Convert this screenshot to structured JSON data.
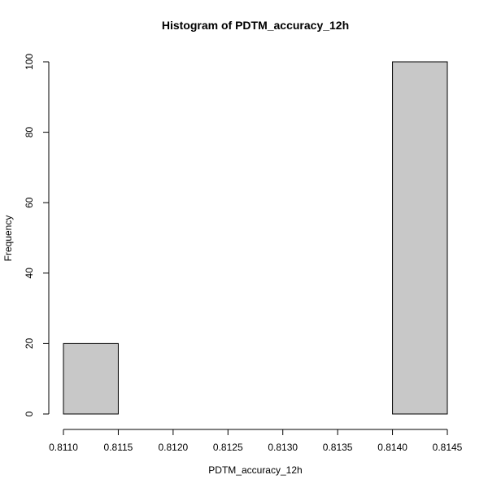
{
  "chart_data": {
    "type": "bar",
    "title": "Histogram of PDTM_accuracy_12h",
    "xlabel": "PDTM_accuracy_12h",
    "ylabel": "Frequency",
    "xlim": [
      0.811,
      0.8145
    ],
    "ylim": [
      0,
      100
    ],
    "xticks": [
      "0.8110",
      "0.8115",
      "0.8120",
      "0.8125",
      "0.8130",
      "0.8135",
      "0.8140",
      "0.8145"
    ],
    "yticks": [
      "0",
      "20",
      "40",
      "60",
      "80",
      "100"
    ],
    "bins": [
      {
        "start": 0.811,
        "end": 0.8115,
        "count": 20
      },
      {
        "start": 0.8115,
        "end": 0.812,
        "count": 0
      },
      {
        "start": 0.812,
        "end": 0.8125,
        "count": 0
      },
      {
        "start": 0.8125,
        "end": 0.813,
        "count": 0
      },
      {
        "start": 0.813,
        "end": 0.8135,
        "count": 0
      },
      {
        "start": 0.8135,
        "end": 0.814,
        "count": 0
      },
      {
        "start": 0.814,
        "end": 0.8145,
        "count": 100
      }
    ],
    "bar_color": "#c8c8c8",
    "grid": false
  }
}
